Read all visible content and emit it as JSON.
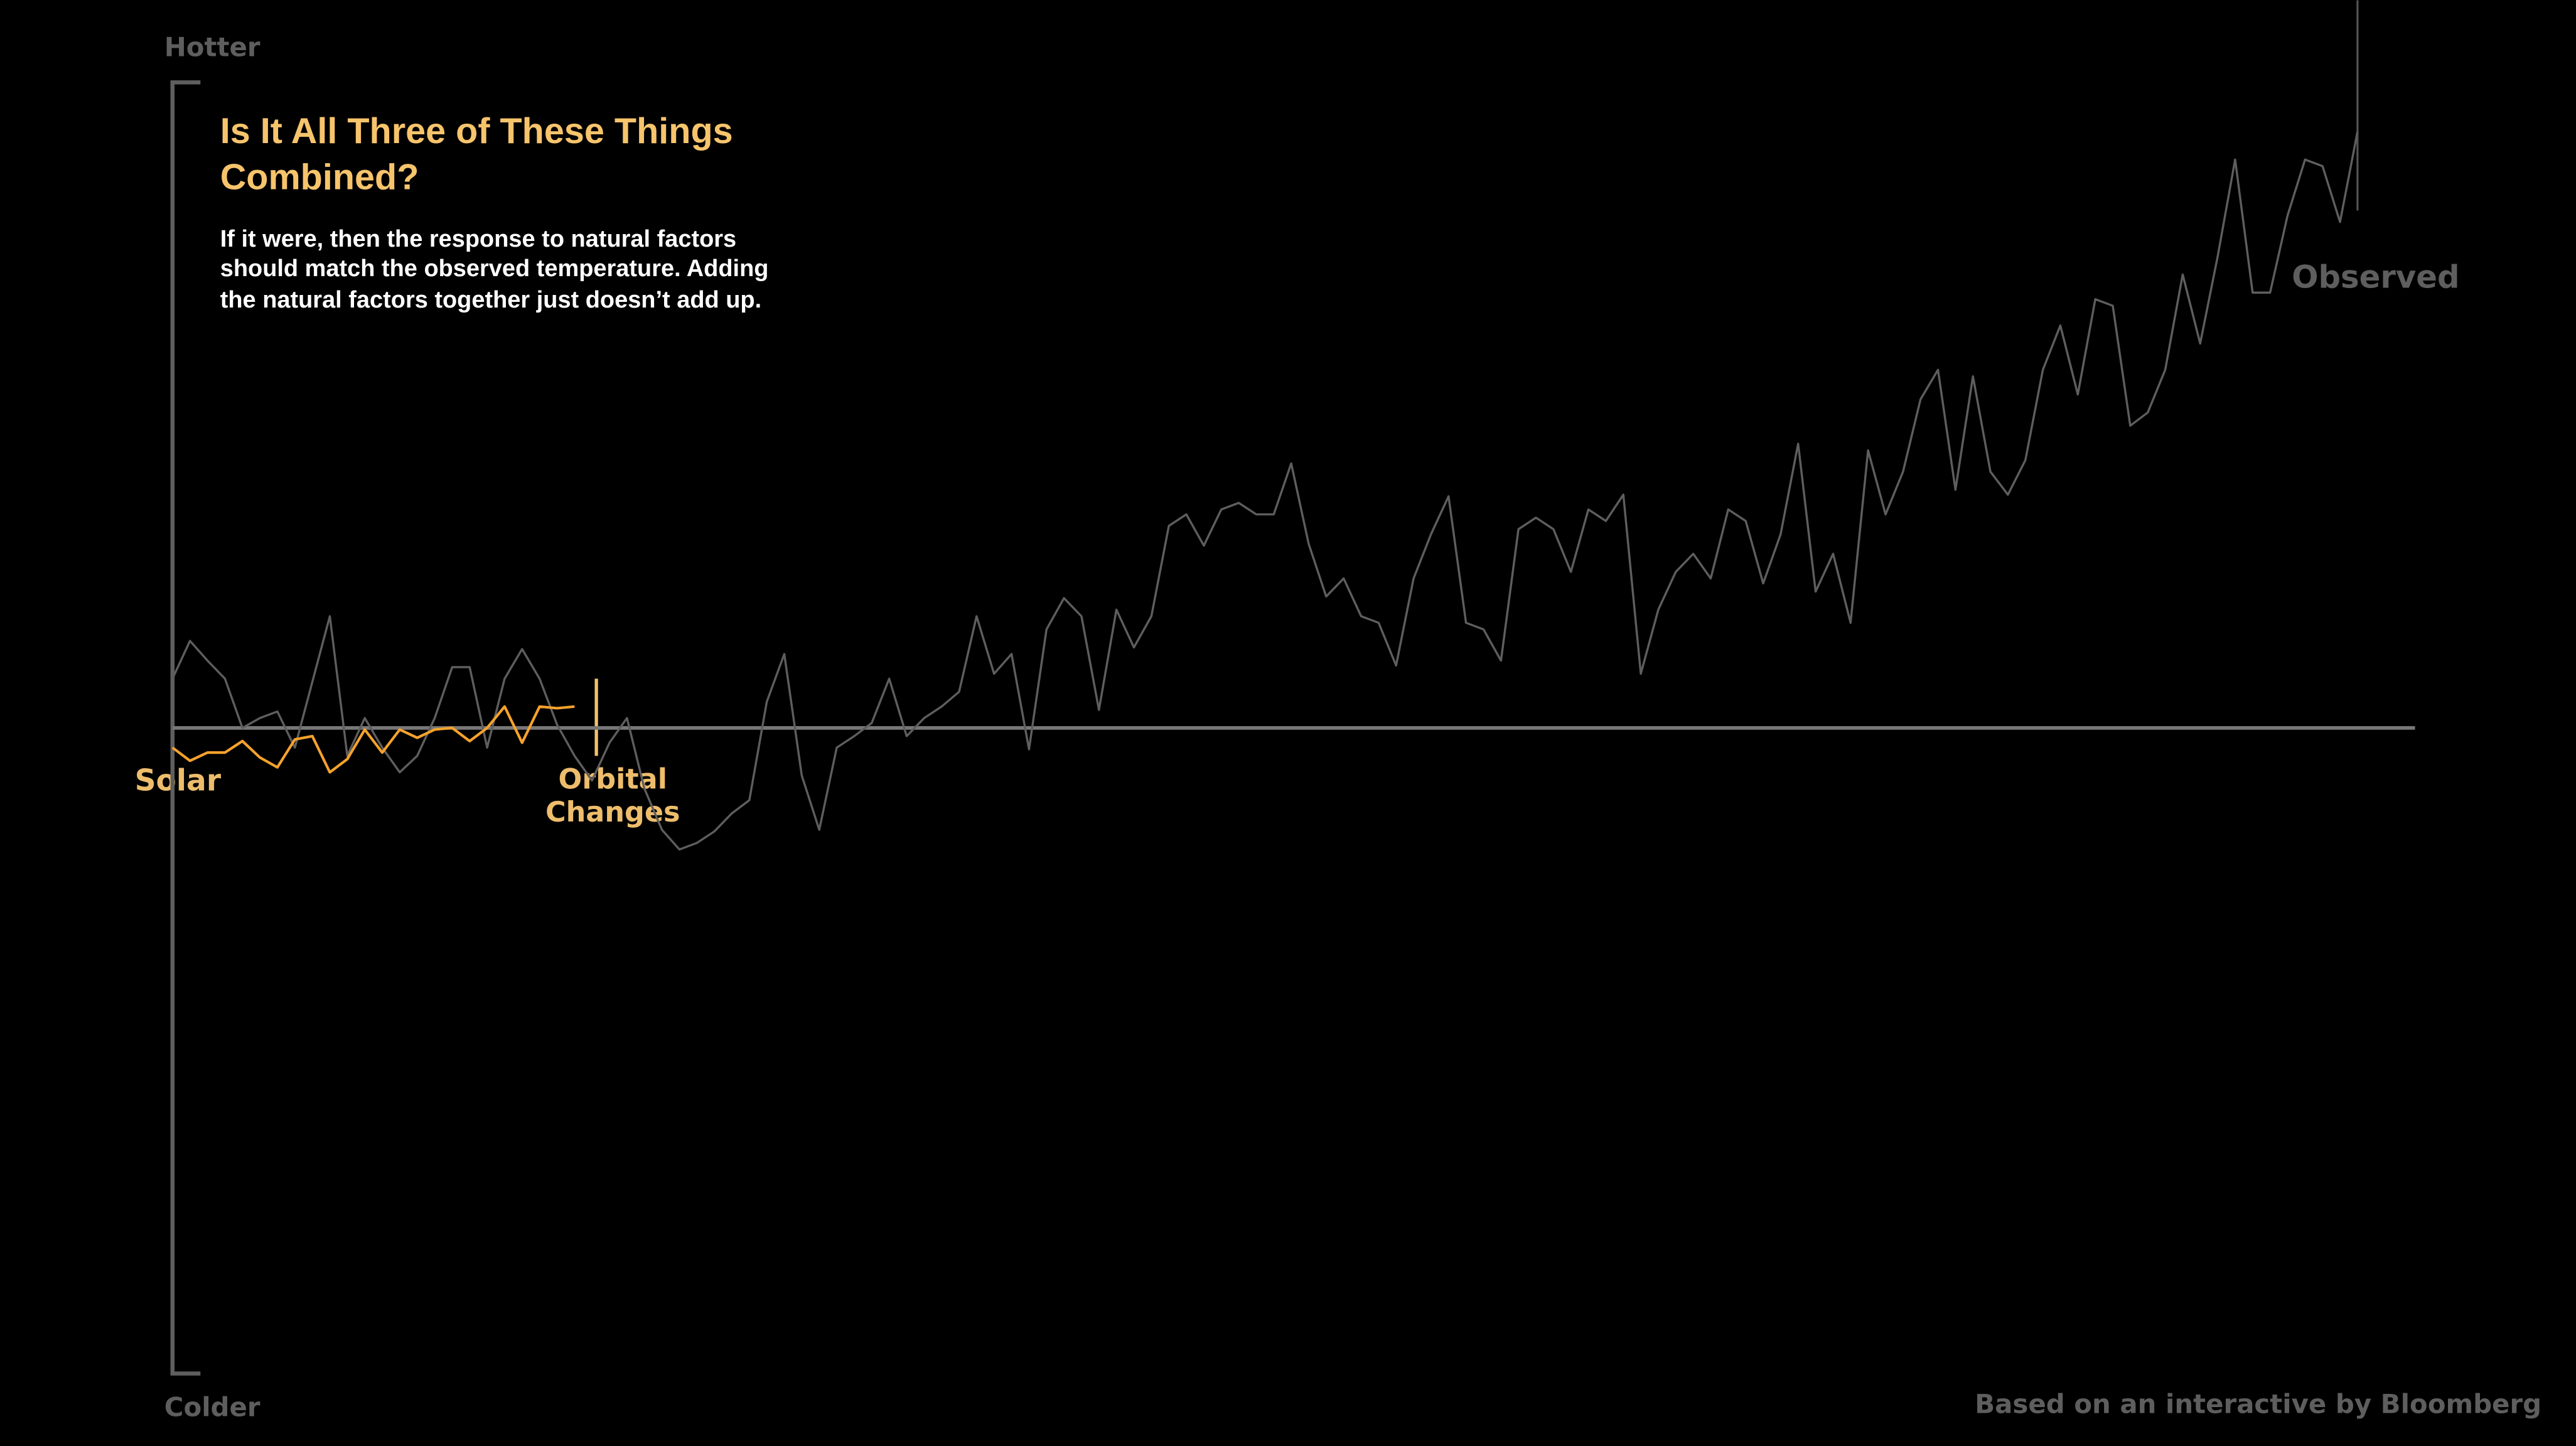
{
  "chart_data": {
    "type": "line",
    "title": "Is It All Three of These Things Combined?",
    "subtitle": "If it were, then the response to natural factors should match the observed temperature. Adding the natural factors together just doesn’t add up.",
    "y_top_label": "Hotter",
    "y_bottom_label": "Colder",
    "annotations": [
      "Solar",
      "Orbital Changes"
    ],
    "source": "Based on an interactive by Bloomberg",
    "categories": [
      null,
      null,
      null,
      null,
      null,
      null,
      null,
      null,
      null,
      null,
      null,
      null,
      null,
      null,
      null,
      null,
      null,
      null,
      null,
      null,
      null,
      null,
      null,
      null,
      null,
      null,
      null,
      null,
      null,
      null,
      null,
      null,
      null,
      null,
      null,
      null,
      null,
      null,
      null,
      null,
      null,
      null,
      null,
      null,
      null,
      null,
      null,
      null,
      null,
      null,
      null,
      null,
      null,
      null,
      null,
      null,
      null,
      null,
      null,
      null,
      null,
      null,
      null,
      null,
      null,
      null,
      null,
      null,
      null,
      null,
      null,
      null,
      null,
      null,
      null,
      null,
      null,
      null,
      null,
      null,
      null,
      null,
      null,
      null,
      null,
      null,
      null,
      null,
      null,
      null,
      null,
      null,
      null,
      null,
      null,
      null,
      null,
      null,
      null,
      null,
      null,
      null,
      null,
      null,
      null,
      null,
      null,
      null,
      null,
      null,
      null,
      null,
      null,
      null,
      null,
      null,
      null,
      null,
      null,
      null,
      null,
      null,
      null,
      null,
      null,
      null
    ],
    "ylim": [
      -393,
      393
    ],
    "series": [
      {
        "name": "Observed",
        "color": "#5e5e5e",
        "values": [
          30,
          53,
          41,
          30,
          0,
          6,
          10,
          -12,
          28,
          68,
          -17,
          6,
          -12,
          -27,
          -17,
          6,
          37,
          37,
          -12,
          30,
          48,
          30,
          2,
          -17,
          -32,
          -9,
          6,
          -37,
          -62,
          -74,
          -70,
          -63,
          -52,
          -44,
          16,
          45,
          -29,
          -62,
          -12,
          -5,
          3,
          30,
          -5,
          6,
          13,
          22,
          68,
          33,
          45,
          -13,
          60,
          79,
          68,
          11,
          72,
          49,
          68,
          123,
          130,
          111,
          133,
          137,
          130,
          130,
          161,
          112,
          80,
          91,
          68,
          64,
          38,
          91,
          118,
          141,
          64,
          60,
          41,
          121,
          128,
          121,
          95,
          133,
          126,
          142,
          33,
          72,
          95,
          106,
          91,
          133,
          126,
          88,
          118,
          173,
          83,
          106,
          64,
          169,
          130,
          156,
          200,
          218,
          145,
          214,
          156,
          142,
          163,
          218,
          245,
          203,
          261,
          257,
          184,
          192,
          218,
          276,
          234,
          287,
          346,
          265,
          265,
          312,
          346,
          342,
          308,
          363
        ]
      },
      {
        "color": "#f5a22c",
        "values": [
          -12,
          -20,
          -15,
          -15,
          -8,
          -18,
          -24,
          -7,
          -5,
          -27,
          -19,
          -1,
          -15,
          -1,
          -6,
          -1,
          0,
          -8,
          0,
          13,
          -9,
          13,
          12,
          13,
          null,
          null,
          null,
          null,
          null,
          null,
          null,
          null,
          null,
          null,
          null,
          null,
          null,
          null,
          null,
          null,
          null,
          null,
          null,
          null,
          null,
          null,
          null,
          null,
          null,
          null,
          null,
          null,
          null,
          null,
          null,
          null,
          null,
          null,
          null,
          null,
          null,
          null,
          null,
          null,
          null,
          null,
          null,
          null,
          null,
          null,
          null,
          null,
          null,
          null,
          null,
          null,
          null,
          null,
          null,
          null,
          null,
          null,
          null,
          null,
          null,
          null,
          null,
          null,
          null,
          null,
          null,
          null,
          null,
          null,
          null,
          null,
          null,
          null,
          null,
          null,
          null,
          null,
          null,
          null,
          null,
          null,
          null,
          null,
          null,
          null,
          null,
          null,
          null,
          null,
          null,
          null,
          null,
          null,
          null,
          null,
          null,
          null,
          null,
          null,
          null,
          null
        ]
      }
    ]
  }
}
